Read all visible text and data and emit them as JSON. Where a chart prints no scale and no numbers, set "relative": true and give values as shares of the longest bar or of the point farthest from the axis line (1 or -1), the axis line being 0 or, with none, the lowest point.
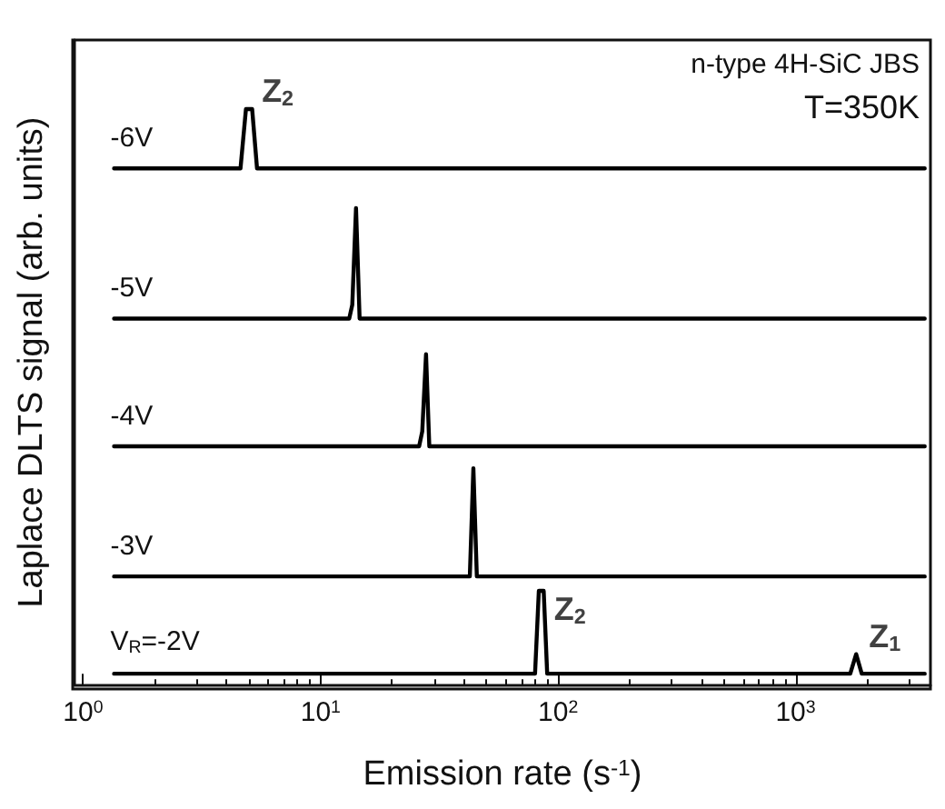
{
  "chart_data": {
    "type": "line",
    "relative": true,
    "xlabel": "Emission rate (s$^{-1}$)",
    "ylabel": "Laplace DLTS signal (arb. units)",
    "log": "x",
    "xlim": [
      0.92,
      3700
    ],
    "xticks": [
      {
        "value": 1,
        "label": "10$^{0}$"
      },
      {
        "value": 10,
        "label": "10$^{1}$"
      },
      {
        "value": 100,
        "label": "10$^{2}$"
      },
      {
        "value": 1000,
        "label": "10$^{3}$"
      }
    ],
    "grid": false,
    "legend": false,
    "marker": "none",
    "line_style": "solid",
    "series": [
      {
        "name": "-6V",
        "color": "#000000",
        "x": [
          1.35,
          4.6,
          4.85,
          5.15,
          5.4,
          3500
        ],
        "values": [
          0.897,
          0.897,
          1.0,
          1.0,
          0.897,
          0.897
        ]
      },
      {
        "name": "-5V",
        "color": "#000000",
        "x": [
          1.35,
          13.2,
          13.6,
          14.1,
          14.6,
          3500
        ],
        "values": [
          0.636,
          0.636,
          0.66,
          0.828,
          0.636,
          0.636
        ]
      },
      {
        "name": "-4V",
        "color": "#000000",
        "x": [
          1.35,
          26.0,
          26.8,
          27.8,
          28.7,
          3500
        ],
        "values": [
          0.414,
          0.414,
          0.44,
          0.574,
          0.414,
          0.414
        ]
      },
      {
        "name": "-3V",
        "color": "#000000",
        "x": [
          1.35,
          42.5,
          44.0,
          45.5,
          3500
        ],
        "values": [
          0.188,
          0.188,
          0.376,
          0.188,
          0.188
        ]
      },
      {
        "name": "V$_{R}$=-2V",
        "color": "#000000",
        "x": [
          1.35,
          80,
          83,
          87,
          90,
          1700,
          1800,
          1900,
          3500
        ],
        "values": [
          0.019,
          0.019,
          0.163,
          0.163,
          0.019,
          0.019,
          0.053,
          0.019,
          0.019
        ]
      }
    ],
    "annotations": [
      "n-type 4H-SiC JBS",
      "T=350K",
      {
        "text": "Z$_{2}$",
        "x": 5.0,
        "y": 1.0
      },
      {
        "text": "Z$_{2}$",
        "x": 85,
        "y": 0.163
      },
      {
        "text": "Z$_{1}$",
        "x": 1800,
        "y": 0.053
      }
    ]
  }
}
